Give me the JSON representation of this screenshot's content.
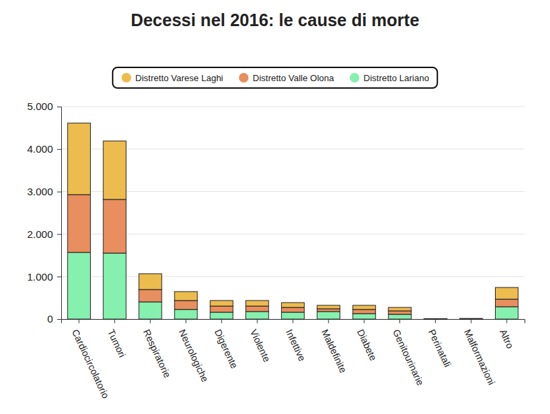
{
  "chart_data": {
    "type": "bar",
    "title": "Decessi nel 2016: le cause di morte",
    "stacked": true,
    "grid": true,
    "legend": "top",
    "categories": [
      "Cardiocircolatorio",
      "Tumori",
      "Respiratorie",
      "Neurologiche",
      "Digerente",
      "Violente",
      "Infettive",
      "Maldefinite",
      "Diabete",
      "Genitourinarie",
      "Perinatali",
      "Malformazioni",
      "Altro"
    ],
    "series": [
      {
        "name": "Distretto Varese Laghi",
        "color": "#edbc4f",
        "values": [
          1683,
          1375,
          372,
          210,
          130,
          130,
          113,
          81,
          97,
          81,
          3,
          4,
          275
        ]
      },
      {
        "name": "Distretto Valle Olona",
        "color": "#e98e5e",
        "values": [
          1359,
          1263,
          291,
          210,
          145,
          129,
          113,
          65,
          98,
          81,
          3,
          4,
          178
        ]
      },
      {
        "name": "Distretto Lariano",
        "color": "#86f0ae",
        "values": [
          1570,
          1553,
          405,
          227,
          162,
          178,
          162,
          178,
          129,
          113,
          5,
          6,
          291
        ]
      }
    ],
    "ylim": [
      0,
      5000
    ],
    "yticks": [
      0,
      {
        "value": 1000,
        "label": "1.000"
      },
      {
        "value": 2000,
        "label": "2.000"
      },
      {
        "value": 3000,
        "label": "3.000"
      },
      {
        "value": 4000,
        "label": "4.000"
      },
      {
        "value": 5000,
        "label": "5.000"
      }
    ]
  }
}
